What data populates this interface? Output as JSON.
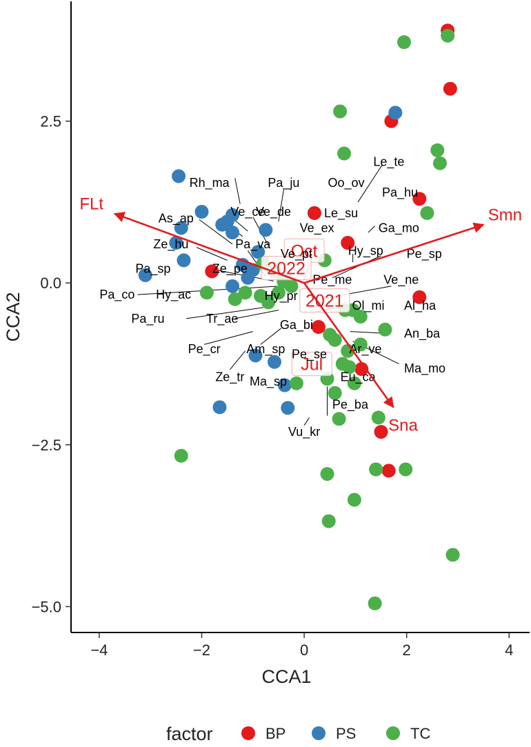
{
  "colors": {
    "BP": "#e41a1c",
    "PS": "#377eb8",
    "TC": "#4daf4a",
    "env": "#e41a1c",
    "text": "#000000",
    "axis": "#222222",
    "centroid_box": "#f4b8b8"
  },
  "chart_data": {
    "type": "scatter",
    "xlabel": "CCA1",
    "ylabel": "CCA2",
    "xlim": [
      -4.55,
      4.4
    ],
    "ylim": [
      -5.4,
      4.35
    ],
    "xticks": [
      -4,
      -2,
      0,
      2,
      4
    ],
    "xtick_labels": [
      "−4",
      "−2",
      "0",
      "2",
      "4"
    ],
    "yticks": [
      -5.0,
      -2.5,
      0.0,
      2.5
    ],
    "ytick_labels": [
      "−5.0",
      "−2.5",
      "0.0",
      "2.5"
    ],
    "grid": false,
    "legend": {
      "title": "factor",
      "position": "bottom",
      "entries": [
        "BP",
        "PS",
        "TC"
      ]
    },
    "series": [
      {
        "name": "BP",
        "points": [
          [
            2.8,
            3.9
          ],
          [
            2.85,
            3.0
          ],
          [
            1.7,
            2.5
          ],
          [
            2.25,
            1.3
          ],
          [
            0.2,
            1.08
          ],
          [
            0.85,
            0.62
          ],
          [
            -1.8,
            0.18
          ],
          [
            2.25,
            -0.22
          ],
          [
            0.28,
            -0.68
          ],
          [
            1.12,
            -1.33
          ],
          [
            1.5,
            -2.3
          ],
          [
            1.65,
            -2.9
          ]
        ]
      },
      {
        "name": "PS",
        "points": [
          [
            1.78,
            2.63
          ],
          [
            -2.45,
            1.65
          ],
          [
            -2.0,
            1.1
          ],
          [
            -1.4,
            1.05
          ],
          [
            -1.5,
            0.95
          ],
          [
            -1.6,
            0.9
          ],
          [
            -2.4,
            0.85
          ],
          [
            -1.4,
            0.78
          ],
          [
            -0.75,
            0.82
          ],
          [
            -2.5,
            0.62
          ],
          [
            -2.35,
            0.35
          ],
          [
            -0.9,
            0.48
          ],
          [
            -1.2,
            0.28
          ],
          [
            -1.0,
            0.2
          ],
          [
            -1.1,
            0.08
          ],
          [
            -3.1,
            0.12
          ],
          [
            -1.4,
            -0.05
          ],
          [
            -0.4,
            0.05
          ],
          [
            -0.58,
            -1.22
          ],
          [
            -0.95,
            -1.12
          ],
          [
            -0.38,
            -1.58
          ],
          [
            -1.65,
            -1.92
          ],
          [
            -0.32,
            -1.93
          ]
        ]
      },
      {
        "name": "TC",
        "points": [
          [
            2.8,
            3.82
          ],
          [
            1.95,
            3.72
          ],
          [
            0.7,
            2.65
          ],
          [
            0.78,
            2.0
          ],
          [
            2.6,
            2.05
          ],
          [
            2.65,
            1.85
          ],
          [
            2.4,
            1.08
          ],
          [
            0.4,
            0.35
          ],
          [
            -0.8,
            0.3
          ],
          [
            -0.6,
            0.18
          ],
          [
            -0.4,
            0.02
          ],
          [
            -1.9,
            -0.15
          ],
          [
            -1.35,
            -0.25
          ],
          [
            -1.15,
            -0.15
          ],
          [
            -0.85,
            -0.2
          ],
          [
            -0.7,
            -0.3
          ],
          [
            -0.5,
            -0.15
          ],
          [
            -0.25,
            -0.05
          ],
          [
            0.8,
            -0.42
          ],
          [
            0.95,
            -0.42
          ],
          [
            1.1,
            -0.52
          ],
          [
            0.6,
            -0.88
          ],
          [
            1.58,
            -0.72
          ],
          [
            0.5,
            -0.8
          ],
          [
            1.1,
            -0.95
          ],
          [
            0.85,
            -1.05
          ],
          [
            0.75,
            -1.25
          ],
          [
            0.98,
            -1.55
          ],
          [
            0.45,
            -1.48
          ],
          [
            0.88,
            -1.3
          ],
          [
            -0.15,
            -1.55
          ],
          [
            0.6,
            -1.7
          ],
          [
            0.68,
            -2.1
          ],
          [
            1.45,
            -2.08
          ],
          [
            1.98,
            -2.88
          ],
          [
            1.4,
            -2.88
          ],
          [
            0.45,
            -2.95
          ],
          [
            0.98,
            -3.35
          ],
          [
            0.48,
            -3.68
          ],
          [
            2.9,
            -4.2
          ],
          [
            -2.4,
            -2.67
          ],
          [
            1.38,
            -4.95
          ]
        ]
      }
    ],
    "env_arrows": [
      {
        "name": "FLt",
        "x": -3.7,
        "y": 1.07,
        "label_x": -4.15,
        "label_y": 1.22,
        "anchor": "middle"
      },
      {
        "name": "Smn",
        "x": 3.5,
        "y": 0.9,
        "label_x": 3.92,
        "label_y": 1.05,
        "anchor": "middle"
      },
      {
        "name": "Sna",
        "x": 1.74,
        "y": -1.92,
        "label_x": 1.93,
        "label_y": -2.2,
        "anchor": "middle"
      }
    ],
    "centroids": [
      {
        "label": "Oct",
        "x": -0.05,
        "y": 0.5,
        "label_x": 0.0,
        "label_y": 0.5
      },
      {
        "label": "2022",
        "x": -0.05,
        "y": 0.23,
        "label_x": -0.35,
        "label_y": 0.23
      },
      {
        "label": "2021",
        "x": 0.4,
        "y": -0.27,
        "label_x": 0.4,
        "label_y": -0.27
      },
      {
        "label": "Jul",
        "x": 0.15,
        "y": -1.25,
        "label_x": 0.15,
        "label_y": -1.25
      }
    ],
    "species": [
      {
        "name": "Le_te",
        "x": 1.52,
        "y": 1.85,
        "lx": 1.35,
        "ly": 1.87,
        "anchor": "start"
      },
      {
        "name": "Oo_ov",
        "x": 1.08,
        "y": 1.55,
        "lx": 0.82,
        "ly": 1.55,
        "anchor": "middle"
      },
      {
        "name": "Pa_ju",
        "x": -0.45,
        "y": 1.55,
        "lx": -0.4,
        "ly": 1.55,
        "anchor": "middle"
      },
      {
        "name": "Rh_ma",
        "x": -1.4,
        "y": 1.55,
        "lx": -1.85,
        "ly": 1.55,
        "anchor": "middle"
      },
      {
        "name": "Pa_hu",
        "x": 1.55,
        "y": 1.4,
        "lx": 1.52,
        "ly": 1.4,
        "anchor": "start"
      },
      {
        "name": "Le_su",
        "x": 0.97,
        "y": 1.08,
        "lx": 0.72,
        "ly": 1.08,
        "anchor": "middle"
      },
      {
        "name": "Ve_ce",
        "x": -1.02,
        "y": 1.1,
        "lx": -1.1,
        "ly": 1.1,
        "anchor": "middle"
      },
      {
        "name": "Ve_de",
        "x": -0.42,
        "y": 1.1,
        "lx": -0.6,
        "ly": 1.1,
        "anchor": "middle"
      },
      {
        "name": "As_ap",
        "x": -2.0,
        "y": 1.0,
        "lx": -2.5,
        "ly": 1.0,
        "anchor": "middle"
      },
      {
        "name": "Ga_mo",
        "x": 1.3,
        "y": 0.85,
        "lx": 1.45,
        "ly": 0.85,
        "anchor": "start"
      },
      {
        "name": "Ve_ex",
        "x": 0.55,
        "y": 0.85,
        "lx": 0.25,
        "ly": 0.85,
        "anchor": "middle"
      },
      {
        "name": "Ze_hu",
        "x": -2.3,
        "y": 0.6,
        "lx": -2.6,
        "ly": 0.6,
        "anchor": "middle"
      },
      {
        "name": "Pa_va",
        "x": -1.25,
        "y": 0.6,
        "lx": -1.0,
        "ly": 0.6,
        "anchor": "middle"
      },
      {
        "name": "Ve_pt",
        "x": -0.3,
        "y": 0.45,
        "lx": -0.15,
        "ly": 0.45,
        "anchor": "middle"
      },
      {
        "name": "Hy_sp",
        "x": 0.95,
        "y": 0.5,
        "lx": 1.2,
        "ly": 0.5,
        "anchor": "middle"
      },
      {
        "name": "Pe_sp",
        "x": 1.25,
        "y": 0.45,
        "lx": 2.0,
        "ly": 0.45,
        "anchor": "start"
      },
      {
        "name": "Pa_sp",
        "x": -1.1,
        "y": 0.22,
        "lx": -2.95,
        "ly": 0.22,
        "anchor": "middle"
      },
      {
        "name": "Ze_pe",
        "x": -1.25,
        "y": 0.22,
        "lx": -1.45,
        "ly": 0.22,
        "anchor": "middle"
      },
      {
        "name": "Pe_me",
        "x": 0.55,
        "y": 0.05,
        "lx": 0.55,
        "ly": 0.05,
        "anchor": "middle"
      },
      {
        "name": "Ve_ne",
        "x": 1.3,
        "y": 0.05,
        "lx": 1.55,
        "ly": 0.05,
        "anchor": "start"
      },
      {
        "name": "Pa_co",
        "x": -2.9,
        "y": -0.18,
        "lx": -3.65,
        "ly": -0.18,
        "anchor": "middle"
      },
      {
        "name": "Hy_ac",
        "x": -2.15,
        "y": -0.18,
        "lx": -2.55,
        "ly": -0.18,
        "anchor": "middle"
      },
      {
        "name": "Hy_pr",
        "x": -0.15,
        "y": -0.2,
        "lx": -0.45,
        "ly": -0.2,
        "anchor": "middle"
      },
      {
        "name": "Ol_mi",
        "x": 0.9,
        "y": -0.35,
        "lx": 1.25,
        "ly": -0.35,
        "anchor": "middle"
      },
      {
        "name": "Al_ha",
        "x": 1.85,
        "y": -0.35,
        "lx": 1.95,
        "ly": -0.35,
        "anchor": "start"
      },
      {
        "name": "Pa_ru",
        "x": -2.35,
        "y": -0.55,
        "lx": -3.05,
        "ly": -0.55,
        "anchor": "middle"
      },
      {
        "name": "Tr_ae",
        "x": -1.6,
        "y": -0.55,
        "lx": -1.6,
        "ly": -0.55,
        "anchor": "middle"
      },
      {
        "name": "Ga_bi",
        "x": -0.1,
        "y": -0.65,
        "lx": -0.15,
        "ly": -0.65,
        "anchor": "middle"
      },
      {
        "name": "An_ba",
        "x": 1.6,
        "y": -0.78,
        "lx": 1.95,
        "ly": -0.78,
        "anchor": "start"
      },
      {
        "name": "Pe_cr",
        "x": -2.0,
        "y": -1.02,
        "lx": -1.95,
        "ly": -1.02,
        "anchor": "middle"
      },
      {
        "name": "Am_sp",
        "x": -0.75,
        "y": -1.02,
        "lx": -0.75,
        "ly": -1.02,
        "anchor": "middle"
      },
      {
        "name": "Ar_ve",
        "x": 0.95,
        "y": -1.02,
        "lx": 0.88,
        "ly": -1.02,
        "anchor": "start"
      },
      {
        "name": "Pe_se",
        "x": 0.15,
        "y": -1.1,
        "lx": 0.1,
        "ly": -1.1,
        "anchor": "middle"
      },
      {
        "name": "Ma_mo",
        "x": 1.75,
        "y": -1.32,
        "lx": 1.95,
        "ly": -1.32,
        "anchor": "start"
      },
      {
        "name": "Ze_tr",
        "x": -1.45,
        "y": -1.45,
        "lx": -1.45,
        "ly": -1.45,
        "anchor": "middle"
      },
      {
        "name": "Eu_ca",
        "x": 1.05,
        "y": -1.45,
        "lx": 1.05,
        "ly": -1.45,
        "anchor": "middle"
      },
      {
        "name": "Ma_sp",
        "x": -0.7,
        "y": -1.52,
        "lx": -0.7,
        "ly": -1.52,
        "anchor": "middle"
      },
      {
        "name": "Pe_ba",
        "x": 0.9,
        "y": -1.88,
        "lx": 0.9,
        "ly": -1.88,
        "anchor": "middle"
      },
      {
        "name": "Vu_kr",
        "x": 0.0,
        "y": -2.3,
        "lx": 0.0,
        "ly": -2.3,
        "anchor": "middle"
      }
    ],
    "leader_lines": [
      [
        1.52,
        1.82,
        1.05,
        1.25
      ],
      [
        -1.35,
        1.62,
        -1.25,
        1.22
      ],
      [
        -0.4,
        1.44,
        -0.5,
        0.95
      ],
      [
        -1.0,
        1.02,
        -0.7,
        0.58
      ],
      [
        -1.4,
        1.0,
        -1.1,
        0.8
      ],
      [
        -1.6,
        0.95,
        -1.2,
        0.72
      ],
      [
        -2.05,
        0.98,
        -1.4,
        0.6
      ],
      [
        -1.1,
        0.5,
        -0.75,
        0.1
      ],
      [
        -2.1,
        0.55,
        -1.5,
        0.35
      ],
      [
        -1.85,
        0.22,
        -0.6,
        0.03
      ],
      [
        -3.25,
        -0.18,
        -0.5,
        -0.05
      ],
      [
        -2.3,
        -0.55,
        -0.8,
        -0.38
      ],
      [
        -1.35,
        -0.55,
        -0.5,
        -0.42
      ],
      [
        -1.95,
        -0.95,
        -1.0,
        -0.75
      ],
      [
        -0.85,
        -0.95,
        -0.45,
        -0.7
      ],
      [
        -1.45,
        -1.34,
        -1.15,
        -1.05
      ],
      [
        1.7,
        -0.05,
        0.3,
        -0.25
      ],
      [
        1.5,
        0.42,
        0.55,
        0.08
      ],
      [
        0.9,
        -0.35,
        0.2,
        -0.45
      ],
      [
        1.6,
        -0.78,
        0.9,
        -0.75
      ],
      [
        1.85,
        -1.25,
        0.95,
        -0.9
      ],
      [
        0.45,
        -1.6,
        0.45,
        -2.05
      ],
      [
        0.0,
        -2.2,
        0.1,
        -2.08
      ],
      [
        1.25,
        0.78,
        1.38,
        0.88
      ],
      [
        0.95,
        0.32,
        0.95,
        0.45
      ],
      [
        0.1,
        0.28,
        0.0,
        0.05
      ]
    ]
  }
}
